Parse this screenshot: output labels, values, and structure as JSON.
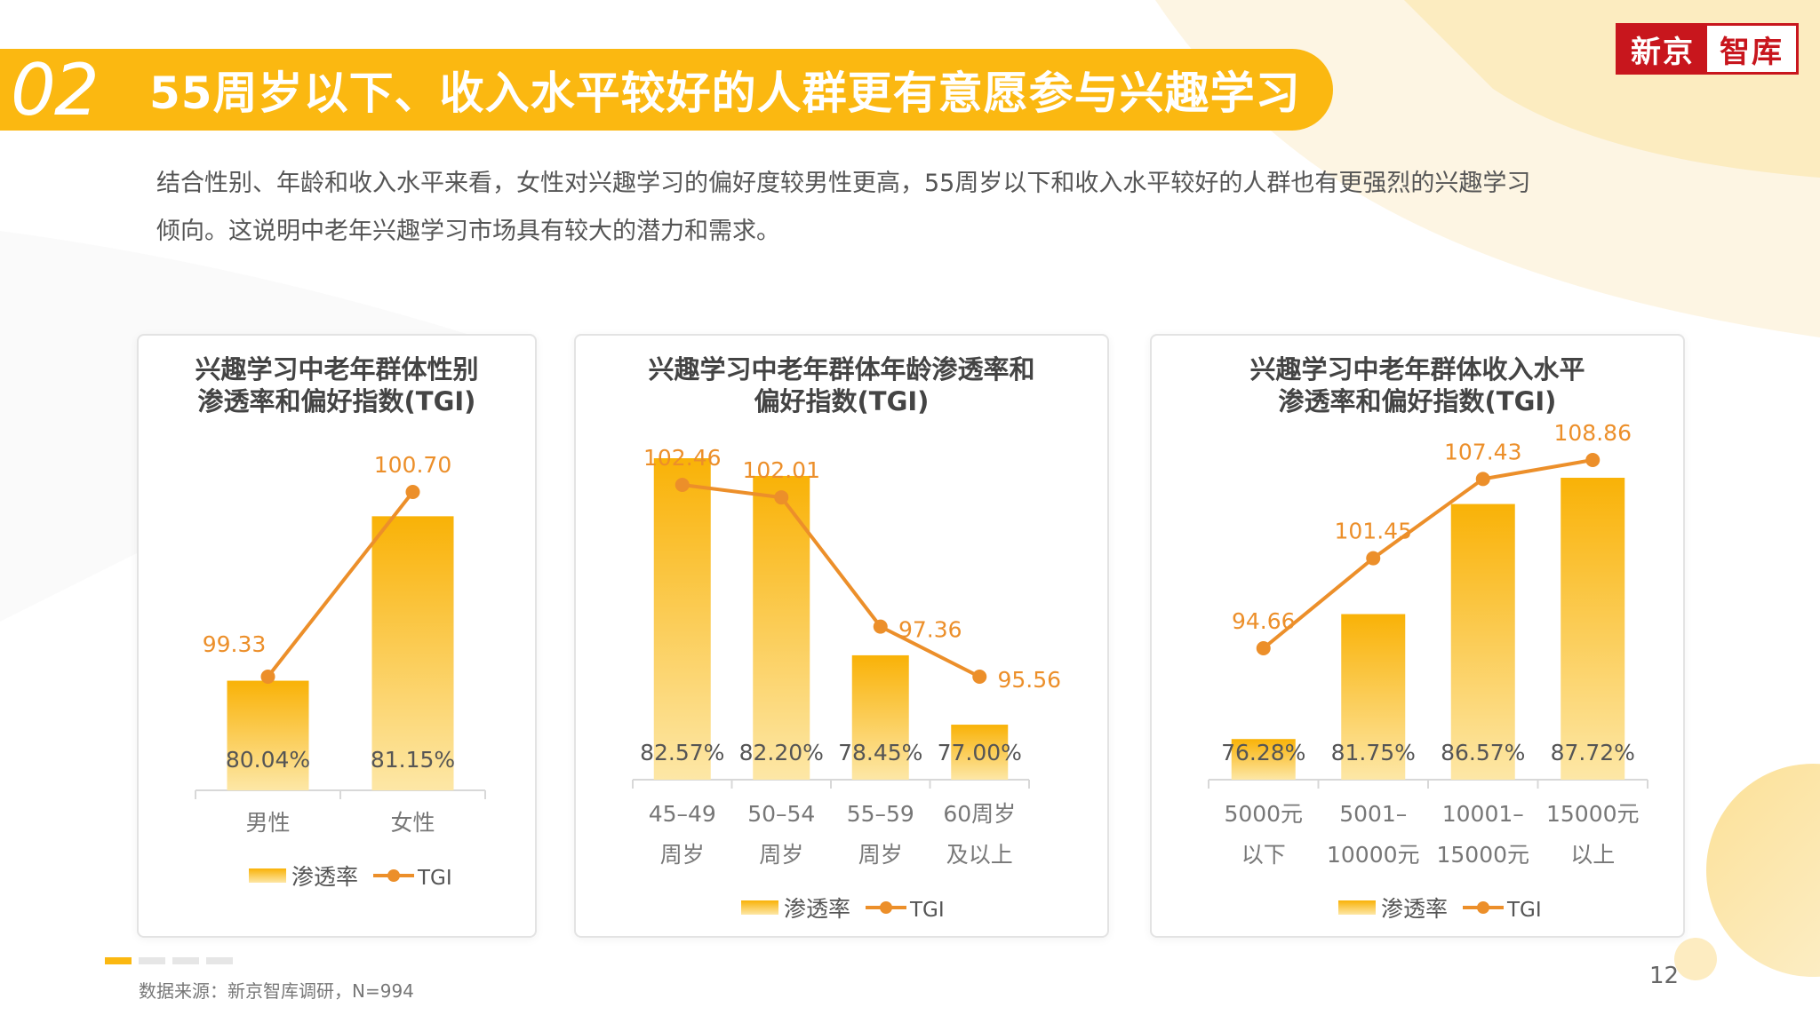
{
  "header": {
    "number": "02",
    "title": "55周岁以下、收入水平较好的人群更有意愿参与兴趣学习"
  },
  "logo": {
    "part1": "新京",
    "part2": "智库"
  },
  "intro": {
    "line1": "结合性别、年龄和收入水平来看，女性对兴趣学习的偏好度较男性更高，55周岁以下和收入水平较好的人群也有更强烈的兴趣学习",
    "line2": "倾向。这说明中老年兴趣学习市场具有较大的潜力和需求。"
  },
  "colors": {
    "accent": "#fbb811",
    "bar_top": "#f9b207",
    "bar_bottom": "#fde7a6",
    "line": "#ec8f2a",
    "brand_red": "#c8161d"
  },
  "legend": {
    "bar": "渗透率",
    "line": "TGI"
  },
  "chart_data": [
    {
      "type": "bar",
      "title_lines": [
        "兴趣学习中老年群体性别",
        "渗透率和偏好指数(TGI)"
      ],
      "categories": [
        [
          "男性"
        ],
        [
          "女性"
        ]
      ],
      "series": [
        {
          "name": "渗透率",
          "values": [
            80.04,
            81.15
          ],
          "labels": [
            "80.04%",
            "81.15%"
          ]
        },
        {
          "name": "TGI",
          "type": "line",
          "values": [
            99.33,
            100.7
          ],
          "labels": [
            "99.33",
            "100.70"
          ]
        }
      ]
    },
    {
      "type": "bar",
      "title_lines": [
        "兴趣学习中老年群体年龄渗透率和",
        "偏好指数(TGI)"
      ],
      "categories": [
        [
          "45–49",
          "周岁"
        ],
        [
          "50–54",
          "周岁"
        ],
        [
          "55–59",
          "周岁"
        ],
        [
          "60周岁",
          "及以上"
        ]
      ],
      "series": [
        {
          "name": "渗透率",
          "values": [
            82.57,
            82.2,
            78.45,
            77.0
          ],
          "labels": [
            "82.57%",
            "82.20%",
            "78.45%",
            "77.00%"
          ]
        },
        {
          "name": "TGI",
          "type": "line",
          "values": [
            102.46,
            102.01,
            97.36,
            95.56
          ],
          "labels": [
            "102.46",
            "102.01",
            "97.36",
            "95.56"
          ]
        }
      ]
    },
    {
      "type": "bar",
      "title_lines": [
        "兴趣学习中老年群体收入水平",
        "渗透率和偏好指数(TGI)"
      ],
      "categories": [
        [
          "5000元",
          "以下"
        ],
        [
          "5001–",
          "10000元"
        ],
        [
          "10001–",
          "15000元"
        ],
        [
          "15000元",
          "以上"
        ]
      ],
      "series": [
        {
          "name": "渗透率",
          "values": [
            76.28,
            81.75,
            86.57,
            87.72
          ],
          "labels": [
            "76.28%",
            "81.75%",
            "86.57%",
            "87.72%"
          ]
        },
        {
          "name": "TGI",
          "type": "line",
          "values": [
            94.66,
            101.45,
            107.43,
            108.86
          ],
          "labels": [
            "94.66",
            "101.45",
            "107.43",
            "108.86"
          ]
        }
      ]
    }
  ],
  "footer": {
    "source": "数据来源：新京智库调研，N=994",
    "page": "12"
  }
}
